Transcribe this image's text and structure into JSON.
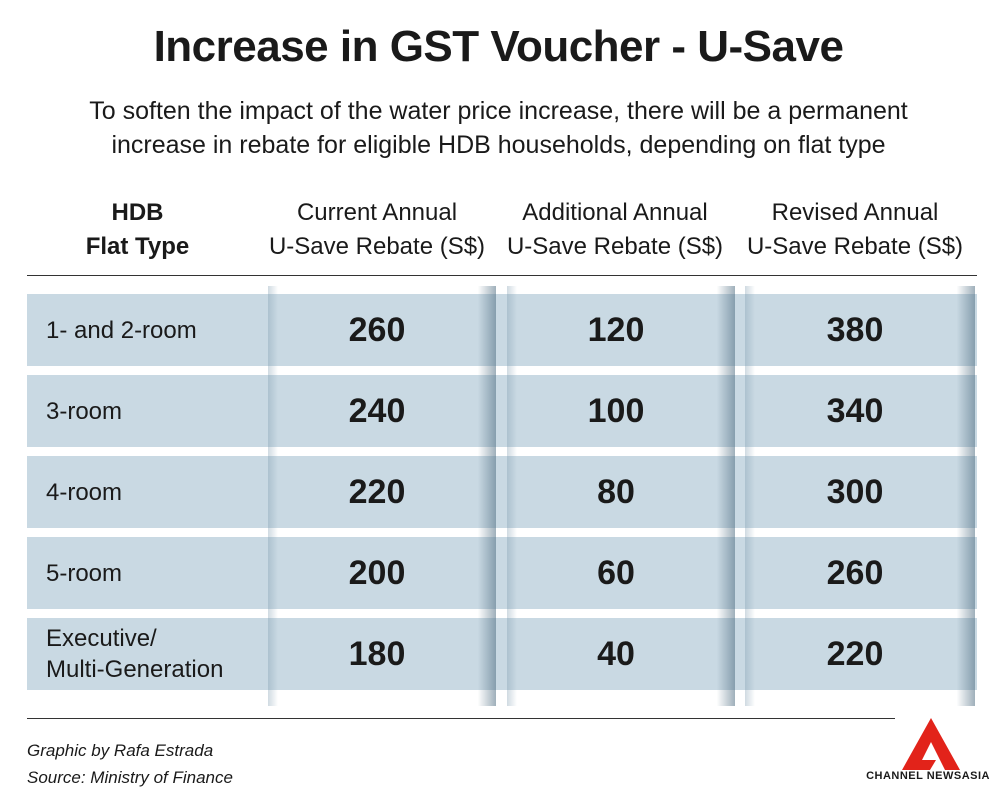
{
  "title": "Increase in GST Voucher - U-Save",
  "subtitle_line1": "To soften the impact of the water price increase, there will be a permanent",
  "subtitle_line2": "increase in rebate for eligible HDB households, depending on flat type",
  "headers": {
    "flat_line1": "HDB",
    "flat_line2": "Flat Type",
    "current_line1": "Current Annual",
    "current_line2": "U-Save Rebate (S$)",
    "additional_line1": "Additional Annual",
    "additional_line2": "U-Save Rebate (S$)",
    "revised_line1": "Revised Annual",
    "revised_line2": "U-Save Rebate (S$)"
  },
  "chart_data": {
    "type": "table",
    "columns": [
      "HDB Flat Type",
      "Current Annual U-Save Rebate (S$)",
      "Additional Annual U-Save Rebate (S$)",
      "Revised Annual U-Save Rebate (S$)"
    ],
    "rows": [
      {
        "flat": "1- and 2-room",
        "current": "260",
        "additional": "120",
        "revised": "380"
      },
      {
        "flat": "3-room",
        "current": "240",
        "additional": "100",
        "revised": "340"
      },
      {
        "flat": "4-room",
        "current": "220",
        "additional": "80",
        "revised": "300"
      },
      {
        "flat": "5-room",
        "current": "200",
        "additional": "60",
        "revised": "260"
      },
      {
        "flat": "Executive/\nMulti-Generation",
        "current": "180",
        "additional": "40",
        "revised": "220"
      }
    ]
  },
  "credit_line1": "Graphic by Rafa Estrada",
  "credit_line2": "Source: Ministry of Finance",
  "brand": "CHANNEL NEWSASIA",
  "colors": {
    "row_band": "#c9d9e3",
    "logo_red": "#e2231a"
  }
}
